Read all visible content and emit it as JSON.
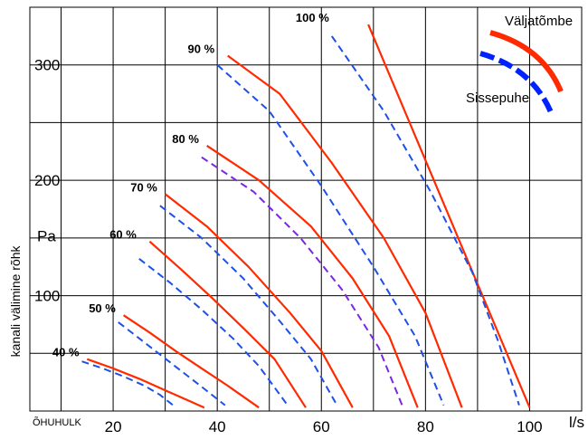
{
  "chart_data": {
    "type": "line",
    "xlabel": "ÕHUHULK",
    "x_unit": "l/s",
    "ylabel": "kanali välimine rõhk",
    "y_unit": "Pa",
    "xlim": [
      4,
      110
    ],
    "ylim": [
      0,
      350
    ],
    "x_ticks": [
      20,
      40,
      60,
      80,
      100
    ],
    "y_ticks": [
      100,
      200,
      300
    ],
    "grid": true,
    "legend": [
      {
        "label": "Väljatõmbe",
        "color": "#ff2a00",
        "style": "solid"
      },
      {
        "label": "Sissepuhe",
        "color": "#0022ff",
        "style": "dashed"
      }
    ],
    "series": [
      {
        "name": "40 %",
        "kind": "Väljatõmbe",
        "color": "#ff2a00",
        "style": "solid",
        "x": [
          15,
          20,
          25,
          30,
          34,
          37.5
        ],
        "y": [
          45,
          37,
          28,
          18,
          10,
          3
        ]
      },
      {
        "name": "40 %",
        "kind": "Sissepuhe",
        "color": "#1e50e6",
        "style": "dashed",
        "x": [
          14,
          18,
          22,
          26,
          29,
          31.5
        ],
        "y": [
          43,
          37,
          30,
          22,
          14,
          5
        ]
      },
      {
        "name": "50 %",
        "kind": "Väljatõmbe",
        "color": "#ff2a00",
        "style": "solid",
        "x": [
          22,
          27,
          32,
          37,
          42,
          48
        ],
        "y": [
          83,
          68,
          52,
          37,
          22,
          3
        ]
      },
      {
        "name": "50 %",
        "kind": "Sissepuhe",
        "color": "#1e50e6",
        "style": "dashed",
        "x": [
          21,
          25,
          29,
          33,
          37,
          41.5
        ],
        "y": [
          77,
          63,
          49,
          35,
          21,
          5
        ]
      },
      {
        "name": "60 %",
        "kind": "Väljatõmbe",
        "color": "#ff2a00",
        "style": "solid",
        "x": [
          27,
          33,
          39,
          45,
          51,
          57
        ],
        "y": [
          147,
          123,
          98,
          72,
          45,
          3
        ]
      },
      {
        "name": "60 %",
        "kind": "Sissepuhe",
        "color": "#1e50e6",
        "style": "dashed",
        "x": [
          25,
          31,
          37,
          43,
          48,
          53.5
        ],
        "y": [
          132,
          111,
          88,
          63,
          39,
          5
        ]
      },
      {
        "name": "70 %",
        "kind": "Väljatõmbe",
        "color": "#ff2a00",
        "style": "solid",
        "x": [
          30,
          38,
          46,
          54,
          60,
          66
        ],
        "y": [
          188,
          160,
          125,
          85,
          52,
          3
        ]
      },
      {
        "name": "70 %",
        "kind": "Sissepuhe",
        "color": "#1e50e6",
        "style": "dashed",
        "x": [
          29,
          37,
          45,
          52,
          58,
          63
        ],
        "y": [
          178,
          150,
          115,
          78,
          45,
          5
        ]
      },
      {
        "name": "80 %",
        "kind": "Väljatõmbe",
        "color": "#ff2a00",
        "style": "solid",
        "x": [
          38,
          48,
          58,
          66,
          73,
          78.5
        ],
        "y": [
          230,
          200,
          160,
          115,
          65,
          3
        ]
      },
      {
        "name": "80 %",
        "kind": "Sissepuhe",
        "color": "#7a28e0",
        "style": "dashed",
        "x": [
          37,
          47,
          56,
          64,
          71,
          75.5
        ],
        "y": [
          220,
          190,
          150,
          105,
          55,
          5
        ]
      },
      {
        "name": "90 %",
        "kind": "Väljatõmbe",
        "color": "#ff2a00",
        "style": "solid",
        "x": [
          42,
          52,
          62,
          72,
          80,
          87
        ],
        "y": [
          308,
          275,
          215,
          150,
          85,
          3
        ]
      },
      {
        "name": "90 %",
        "kind": "Sissepuhe",
        "color": "#1e50e6",
        "style": "dashed",
        "x": [
          40,
          50,
          60,
          70,
          78,
          83.5
        ],
        "y": [
          300,
          260,
          195,
          125,
          65,
          5
        ]
      },
      {
        "name": "100 %",
        "kind": "Väljatõmbe",
        "color": "#ff2a00",
        "style": "solid",
        "x": [
          69,
          100
        ],
        "y": [
          335,
          3
        ]
      },
      {
        "name": "100 %",
        "kind": "Sissepuhe",
        "color": "#1e50e6",
        "style": "dashed",
        "x": [
          62,
          72,
          81,
          89,
          94,
          98
        ],
        "y": [
          325,
          260,
          190,
          120,
          60,
          5
        ]
      }
    ]
  }
}
